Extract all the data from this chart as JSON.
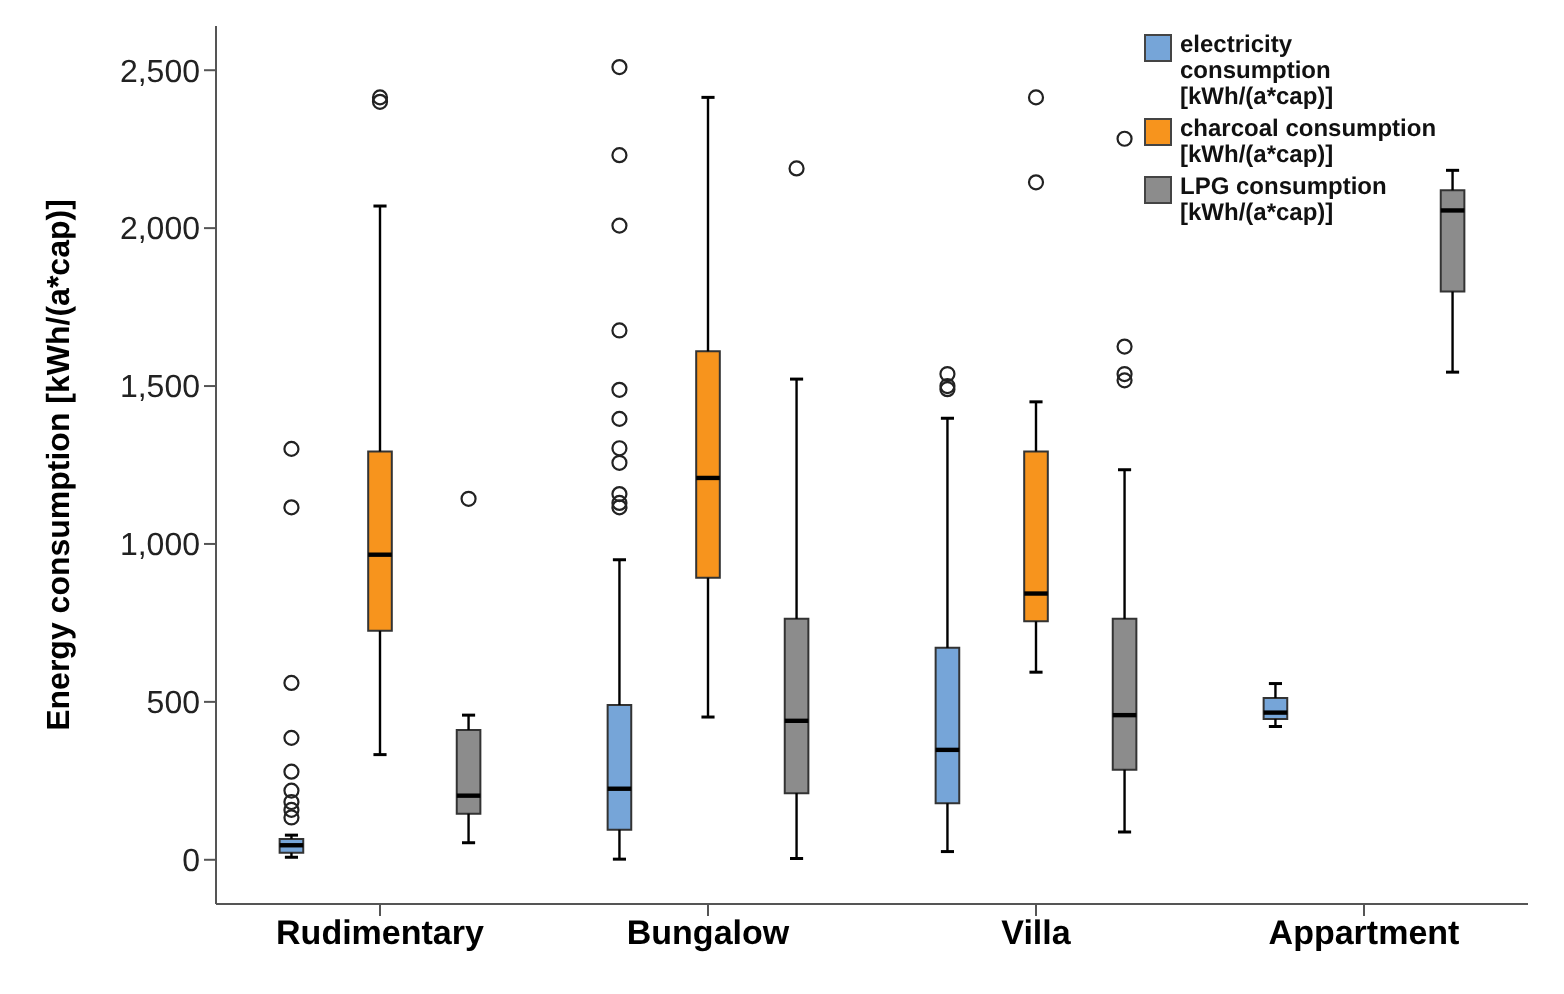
{
  "chart_data": {
    "type": "box",
    "ylabel": "Energy consumption [kWh/(a*cap)]",
    "categories": [
      "Rudimentary",
      "Bungalow",
      "Villa",
      "Appartment"
    ],
    "ylim": [
      -140,
      2640
    ],
    "yticks": [
      0,
      500,
      {
        "value": 1000,
        "label": "1,000"
      },
      {
        "value": 1500,
        "label": "1,500"
      },
      {
        "value": 2000,
        "label": "2,000"
      },
      {
        "value": 2500,
        "label": "2,500"
      }
    ],
    "grid": false,
    "legend": "top right",
    "series": [
      {
        "name": "electricity consumption [kWh/(a*cap)]",
        "color": "#76a5d8",
        "boxes": [
          {
            "low": 8,
            "q1": 22,
            "median": 46,
            "q3": 66,
            "high": 78,
            "outliers": [
              134,
              158,
              183,
              219,
              279,
              386,
              560,
              1116,
              1301
            ]
          },
          {
            "low": 2,
            "q1": 95,
            "median": 225,
            "q3": 490,
            "high": 950,
            "outliers": [
              1116,
              1130,
              1158,
              1257,
              1303,
              1396,
              1488,
              1676,
              2008,
              2231,
              2510
            ]
          },
          {
            "low": 26,
            "q1": 179,
            "median": 348,
            "q3": 671,
            "high": 1398,
            "outliers": [
              1490,
              1500,
              1538
            ]
          },
          {
            "low": 422,
            "q1": 446,
            "median": 466,
            "q3": 512,
            "high": 558
          }
        ]
      },
      {
        "name": "charcoal consumption [kWh/(a*cap)]",
        "color": "#f7941d",
        "boxes": [
          {
            "low": 333,
            "q1": 725,
            "median": 966,
            "q3": 1293,
            "high": 2070,
            "outliers": [
              2400,
              2414
            ]
          },
          {
            "low": 452,
            "q1": 893,
            "median": 1209,
            "q3": 1610,
            "high": 2414
          },
          {
            "low": 594,
            "q1": 755,
            "median": 843,
            "q3": 1293,
            "high": 1450,
            "outliers": [
              2145,
              2414
            ]
          },
          null
        ]
      },
      {
        "name": "LPG consumption [kWh/(a*cap)]",
        "color": "#8c8c8c",
        "boxes": [
          {
            "low": 54,
            "q1": 146,
            "median": 203,
            "q3": 411,
            "high": 458,
            "outliers": [
              1143
            ]
          },
          {
            "low": 4,
            "q1": 211,
            "median": 440,
            "q3": 763,
            "high": 1522,
            "outliers": [
              2189
            ]
          },
          {
            "low": 88,
            "q1": 285,
            "median": 458,
            "q3": 763,
            "high": 1235,
            "outliers": [
              1518,
              1538,
              1625,
              2283
            ]
          },
          {
            "low": 1544,
            "q1": 1799,
            "median": 2056,
            "q3": 2120,
            "high": 2183
          }
        ]
      }
    ]
  }
}
